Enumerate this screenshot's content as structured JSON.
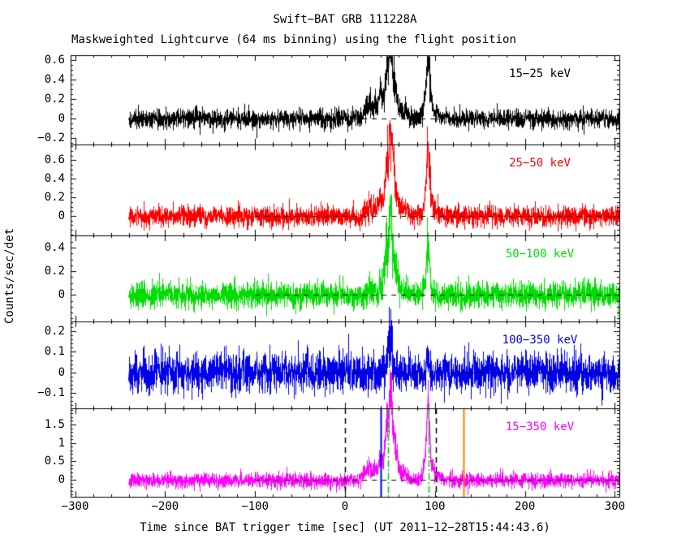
{
  "chart_data": {
    "type": "line",
    "title": "Swift−BAT GRB 111228A",
    "subtitle": "Maskweighted Lightcurve (64 ms binning) using the flight position",
    "xlabel": "Time since BAT trigger time [sec] (UT 2011−12−28T15:44:43.6)",
    "ylabel": "Counts/sec/det",
    "binning": "64 ms",
    "background": "#ffffff",
    "axis_color": "#000000",
    "x_range": [
      -305,
      305
    ],
    "x_minor_step": 20,
    "x_ticks": [
      {
        "v": -300,
        "label": "−300"
      },
      {
        "v": -200,
        "label": "−200"
      },
      {
        "v": -100,
        "label": "−100"
      },
      {
        "v": 0,
        "label": "0"
      },
      {
        "v": 100,
        "label": "100"
      },
      {
        "v": 200,
        "label": "200"
      },
      {
        "v": 300,
        "label": "300"
      }
    ],
    "data_t_start": -240.5,
    "data_t_end": 305,
    "zero_line": {
      "t_start": -100,
      "t_end": 305,
      "color": "#000000",
      "style": "dashed"
    },
    "panels": [
      {
        "label": "15−25 keV",
        "color": "#000000",
        "label_color": "#000000",
        "ylim": [
          -0.27,
          0.65
        ],
        "y_minor_step": 0.05,
        "noise_sigma": 0.048,
        "yticks": [
          {
            "v": 0.6,
            "label": "0.6"
          },
          {
            "v": 0.4,
            "label": "0.4"
          },
          {
            "v": 0.2,
            "label": "0.2"
          },
          {
            "v": 0,
            "label": "0"
          },
          {
            "v": -0.2,
            "label": "−0.2"
          }
        ],
        "clip_top": 0.64,
        "pulses": [
          [
            21,
            0.1,
            1.2
          ],
          [
            24,
            0.13,
            1.0
          ],
          [
            27,
            0.2,
            1.0
          ],
          [
            30,
            0.12,
            1.2
          ],
          [
            33,
            0.16,
            1.0
          ],
          [
            36,
            0.14,
            1.0
          ],
          [
            38.5,
            0.25,
            1.0
          ],
          [
            41,
            0.18,
            1.2
          ],
          [
            44,
            0.26,
            1.0
          ],
          [
            46,
            0.36,
            0.8
          ],
          [
            47.5,
            0.3,
            0.7
          ],
          [
            49,
            0.44,
            0.8
          ],
          [
            50.5,
            0.47,
            0.9
          ],
          [
            52,
            0.34,
            0.8
          ],
          [
            54,
            0.28,
            1.0
          ],
          [
            56.5,
            0.18,
            1.5
          ],
          [
            50,
            0.1,
            6
          ],
          [
            63,
            0.07,
            6
          ],
          [
            88,
            0.1,
            1.5
          ],
          [
            90.5,
            0.24,
            1.0
          ],
          [
            91.8,
            0.5,
            0.8
          ],
          [
            93.5,
            0.26,
            1.0
          ],
          [
            96,
            0.1,
            1.5
          ],
          [
            92,
            0.09,
            4
          ],
          [
            102,
            0.04,
            5
          ]
        ]
      },
      {
        "label": "25−50 keV",
        "color": "#ff0000",
        "label_color": "#ff0000",
        "ylim": [
          -0.21,
          0.77
        ],
        "y_minor_step": 0.05,
        "noise_sigma": 0.055,
        "yticks": [
          {
            "v": 0.6,
            "label": "0.6"
          },
          {
            "v": 0.4,
            "label": "0.4"
          },
          {
            "v": 0.2,
            "label": "0.2"
          },
          {
            "v": 0,
            "label": "0"
          }
        ],
        "pulses": [
          [
            21,
            0.06,
            1.2
          ],
          [
            24,
            0.08,
            1.0
          ],
          [
            27,
            0.13,
            1.0
          ],
          [
            30,
            0.08,
            1.2
          ],
          [
            33,
            0.11,
            1.0
          ],
          [
            36,
            0.1,
            1.0
          ],
          [
            38.5,
            0.17,
            1.0
          ],
          [
            41,
            0.13,
            1.2
          ],
          [
            44,
            0.28,
            1.0
          ],
          [
            46,
            0.46,
            0.8
          ],
          [
            47.5,
            0.38,
            0.7
          ],
          [
            49,
            0.6,
            0.8
          ],
          [
            50.5,
            0.64,
            0.9
          ],
          [
            52,
            0.44,
            0.8
          ],
          [
            54,
            0.36,
            1.0
          ],
          [
            56.5,
            0.2,
            1.5
          ],
          [
            50,
            0.12,
            6
          ],
          [
            63,
            0.07,
            6
          ],
          [
            88,
            0.1,
            1.5
          ],
          [
            90.5,
            0.26,
            1.0
          ],
          [
            91.8,
            0.55,
            0.8
          ],
          [
            93.5,
            0.28,
            1.0
          ],
          [
            96,
            0.1,
            1.5
          ],
          [
            92,
            0.1,
            4
          ],
          [
            102,
            0.04,
            5
          ]
        ]
      },
      {
        "label": "50−100 keV",
        "color": "#00dd00",
        "label_color": "#00dd00",
        "ylim": [
          -0.225,
          0.503
        ],
        "y_minor_step": 0.05,
        "noise_sigma": 0.055,
        "yticks": [
          {
            "v": 0.4,
            "label": "0.4"
          },
          {
            "v": 0.2,
            "label": "0.2"
          },
          {
            "v": 0,
            "label": "0"
          }
        ],
        "pulses": [
          [
            27,
            0.07,
            1.0
          ],
          [
            33,
            0.06,
            1.0
          ],
          [
            38.5,
            0.09,
            1.0
          ],
          [
            41,
            0.07,
            1.2
          ],
          [
            44,
            0.18,
            1.0
          ],
          [
            46,
            0.32,
            0.8
          ],
          [
            47.5,
            0.26,
            0.7
          ],
          [
            49,
            0.44,
            0.8
          ],
          [
            50.5,
            0.48,
            0.9
          ],
          [
            52,
            0.3,
            0.8
          ],
          [
            54,
            0.22,
            1.0
          ],
          [
            56.5,
            0.13,
            1.5
          ],
          [
            50,
            0.08,
            6
          ],
          [
            63,
            0.05,
            6
          ],
          [
            88,
            0.06,
            1.5
          ],
          [
            90.5,
            0.15,
            1.0
          ],
          [
            91.8,
            0.28,
            0.8
          ],
          [
            93.5,
            0.15,
            1.0
          ],
          [
            92,
            0.06,
            4
          ]
        ]
      },
      {
        "label": "100−350 keV",
        "color": "#0000ee",
        "label_color": "#0000ee",
        "ylim": [
          -0.175,
          0.248
        ],
        "y_minor_step": 0.02,
        "noise_sigma": 0.05,
        "yticks": [
          {
            "v": 0.2,
            "label": "0.2"
          },
          {
            "v": 0.1,
            "label": "0.1"
          },
          {
            "v": 0,
            "label": "0"
          },
          {
            "v": -0.1,
            "label": "−0.1"
          }
        ],
        "pulses": [
          [
            46,
            0.05,
            0.8
          ],
          [
            49,
            0.09,
            0.8
          ],
          [
            50.5,
            0.19,
            0.7
          ],
          [
            52,
            0.07,
            0.8
          ],
          [
            50,
            0.03,
            5
          ],
          [
            91.8,
            0.08,
            0.8
          ],
          [
            90.5,
            0.04,
            1.0
          ]
        ]
      },
      {
        "label": "15−350 keV",
        "color": "#ff00ff",
        "label_color": "#ff00ff",
        "ylim": [
          -0.46,
          1.94
        ],
        "y_minor_step": 0.1,
        "noise_sigma": 0.1,
        "yticks": [
          {
            "v": 1.5,
            "label": "1.5"
          },
          {
            "v": 1,
            "label": "1"
          },
          {
            "v": 0.5,
            "label": "0.5"
          },
          {
            "v": 0,
            "label": "0"
          }
        ],
        "pulses": [
          [
            21,
            0.22,
            1.2
          ],
          [
            24,
            0.3,
            1.0
          ],
          [
            27,
            0.45,
            1.0
          ],
          [
            30,
            0.28,
            1.2
          ],
          [
            33,
            0.37,
            1.0
          ],
          [
            36,
            0.32,
            1.0
          ],
          [
            38.5,
            0.55,
            1.0
          ],
          [
            41,
            0.42,
            1.2
          ],
          [
            44,
            0.75,
            1.0
          ],
          [
            46,
            1.15,
            0.8
          ],
          [
            47.5,
            0.95,
            0.7
          ],
          [
            49,
            1.5,
            0.8
          ],
          [
            50.5,
            1.65,
            0.9
          ],
          [
            52,
            1.05,
            0.8
          ],
          [
            54,
            0.85,
            1.0
          ],
          [
            56.5,
            0.5,
            1.5
          ],
          [
            50,
            0.3,
            6
          ],
          [
            63,
            0.18,
            6
          ],
          [
            88,
            0.28,
            1.5
          ],
          [
            90.5,
            0.7,
            1.0
          ],
          [
            91.8,
            1.45,
            0.8
          ],
          [
            93.5,
            0.75,
            1.0
          ],
          [
            96,
            0.28,
            1.5
          ],
          [
            92,
            0.28,
            4
          ],
          [
            102,
            0.1,
            5
          ]
        ]
      }
    ],
    "vlines": [
      {
        "t": 0,
        "color": "#000000",
        "style": "dashed",
        "panel": 4
      },
      {
        "t": 101,
        "color": "#000000",
        "style": "dashed",
        "panel": 4
      },
      {
        "t": 40,
        "color": "#0000ee",
        "style": "solid",
        "panel": 4
      },
      {
        "t": 48,
        "color": "#00cc00",
        "style": "dashdot",
        "panel": 4
      },
      {
        "t": 93,
        "color": "#00cc00",
        "style": "dashdot",
        "panel": 4
      },
      {
        "t": 132,
        "color": "#ff8000",
        "style": "solid",
        "panel": 4
      }
    ]
  }
}
